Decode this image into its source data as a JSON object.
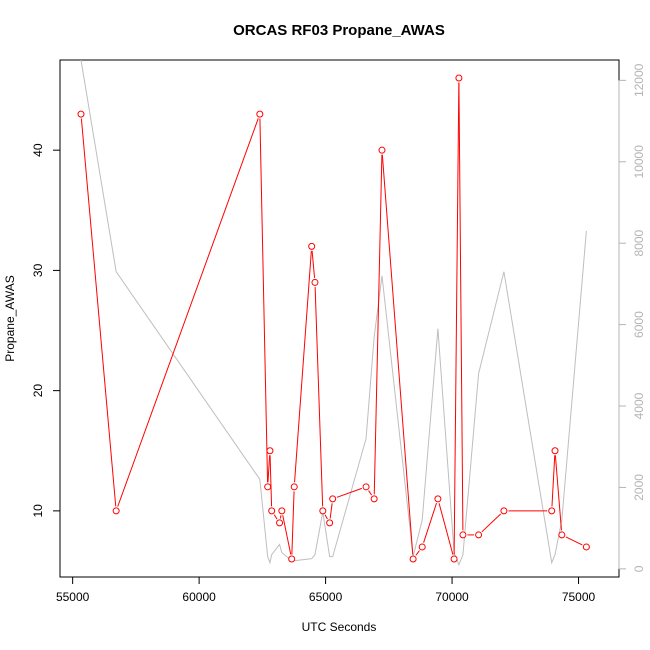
{
  "chart_data": {
    "type": "line",
    "title": "ORCAS RF03 Propane_AWAS",
    "xlabel": "UTC Seconds",
    "ylabel": "Propane_AWAS",
    "xlim": [
      54500,
      76600
    ],
    "ylim": [
      4.5,
      47.5
    ],
    "y2lim": [
      -200,
      12500
    ],
    "x_ticks": [
      55000,
      60000,
      65000,
      70000,
      75000
    ],
    "x_tick_labels": [
      "55000",
      "60000",
      "65000",
      "70000",
      "75000"
    ],
    "y_ticks": [
      10,
      20,
      30,
      40
    ],
    "y_tick_labels": [
      "10",
      "20",
      "30",
      "40"
    ],
    "y2_ticks": [
      0,
      2000,
      4000,
      6000,
      8000,
      10000,
      12000
    ],
    "y2_tick_labels": [
      "0",
      "2000",
      "4000",
      "6000",
      "8000",
      "10000",
      "12000"
    ],
    "series": [
      {
        "color": "#ff0000",
        "style": "line-with-open-circles",
        "axis": "left",
        "x": [
          55330,
          56720,
          62400,
          62710,
          62800,
          62870,
          63180,
          63270,
          63660,
          63760,
          64450,
          64580,
          64890,
          65160,
          65280,
          66600,
          66920,
          67230,
          68460,
          68820,
          69440,
          70080,
          70270,
          70430,
          71050,
          72050,
          73940,
          74070,
          74340,
          75310
        ],
        "values": [
          43,
          10,
          43,
          12,
          15,
          10,
          9,
          10,
          6,
          12,
          32,
          29,
          10,
          9,
          11,
          12,
          11,
          40,
          6,
          7,
          11,
          6,
          46,
          8,
          8,
          10,
          10,
          15,
          8,
          7
        ]
      },
      {
        "color": "#bebebe",
        "style": "line",
        "axis": "right",
        "x": [
          55330,
          56720,
          62400,
          62710,
          62800,
          62870,
          63180,
          63270,
          63660,
          63760,
          64450,
          64580,
          64890,
          65160,
          65280,
          66600,
          66920,
          67230,
          68460,
          68820,
          69440,
          70080,
          70270,
          70430,
          71050,
          72050,
          73940,
          74070,
          74340,
          75310
        ],
        "values": [
          12500,
          7300,
          2200,
          300,
          150,
          350,
          600,
          400,
          200,
          200,
          250,
          350,
          1400,
          300,
          300,
          3200,
          5700,
          7200,
          300,
          1200,
          5900,
          400,
          100,
          350,
          4800,
          7300,
          150,
          350,
          1200,
          8300
        ]
      }
    ]
  }
}
